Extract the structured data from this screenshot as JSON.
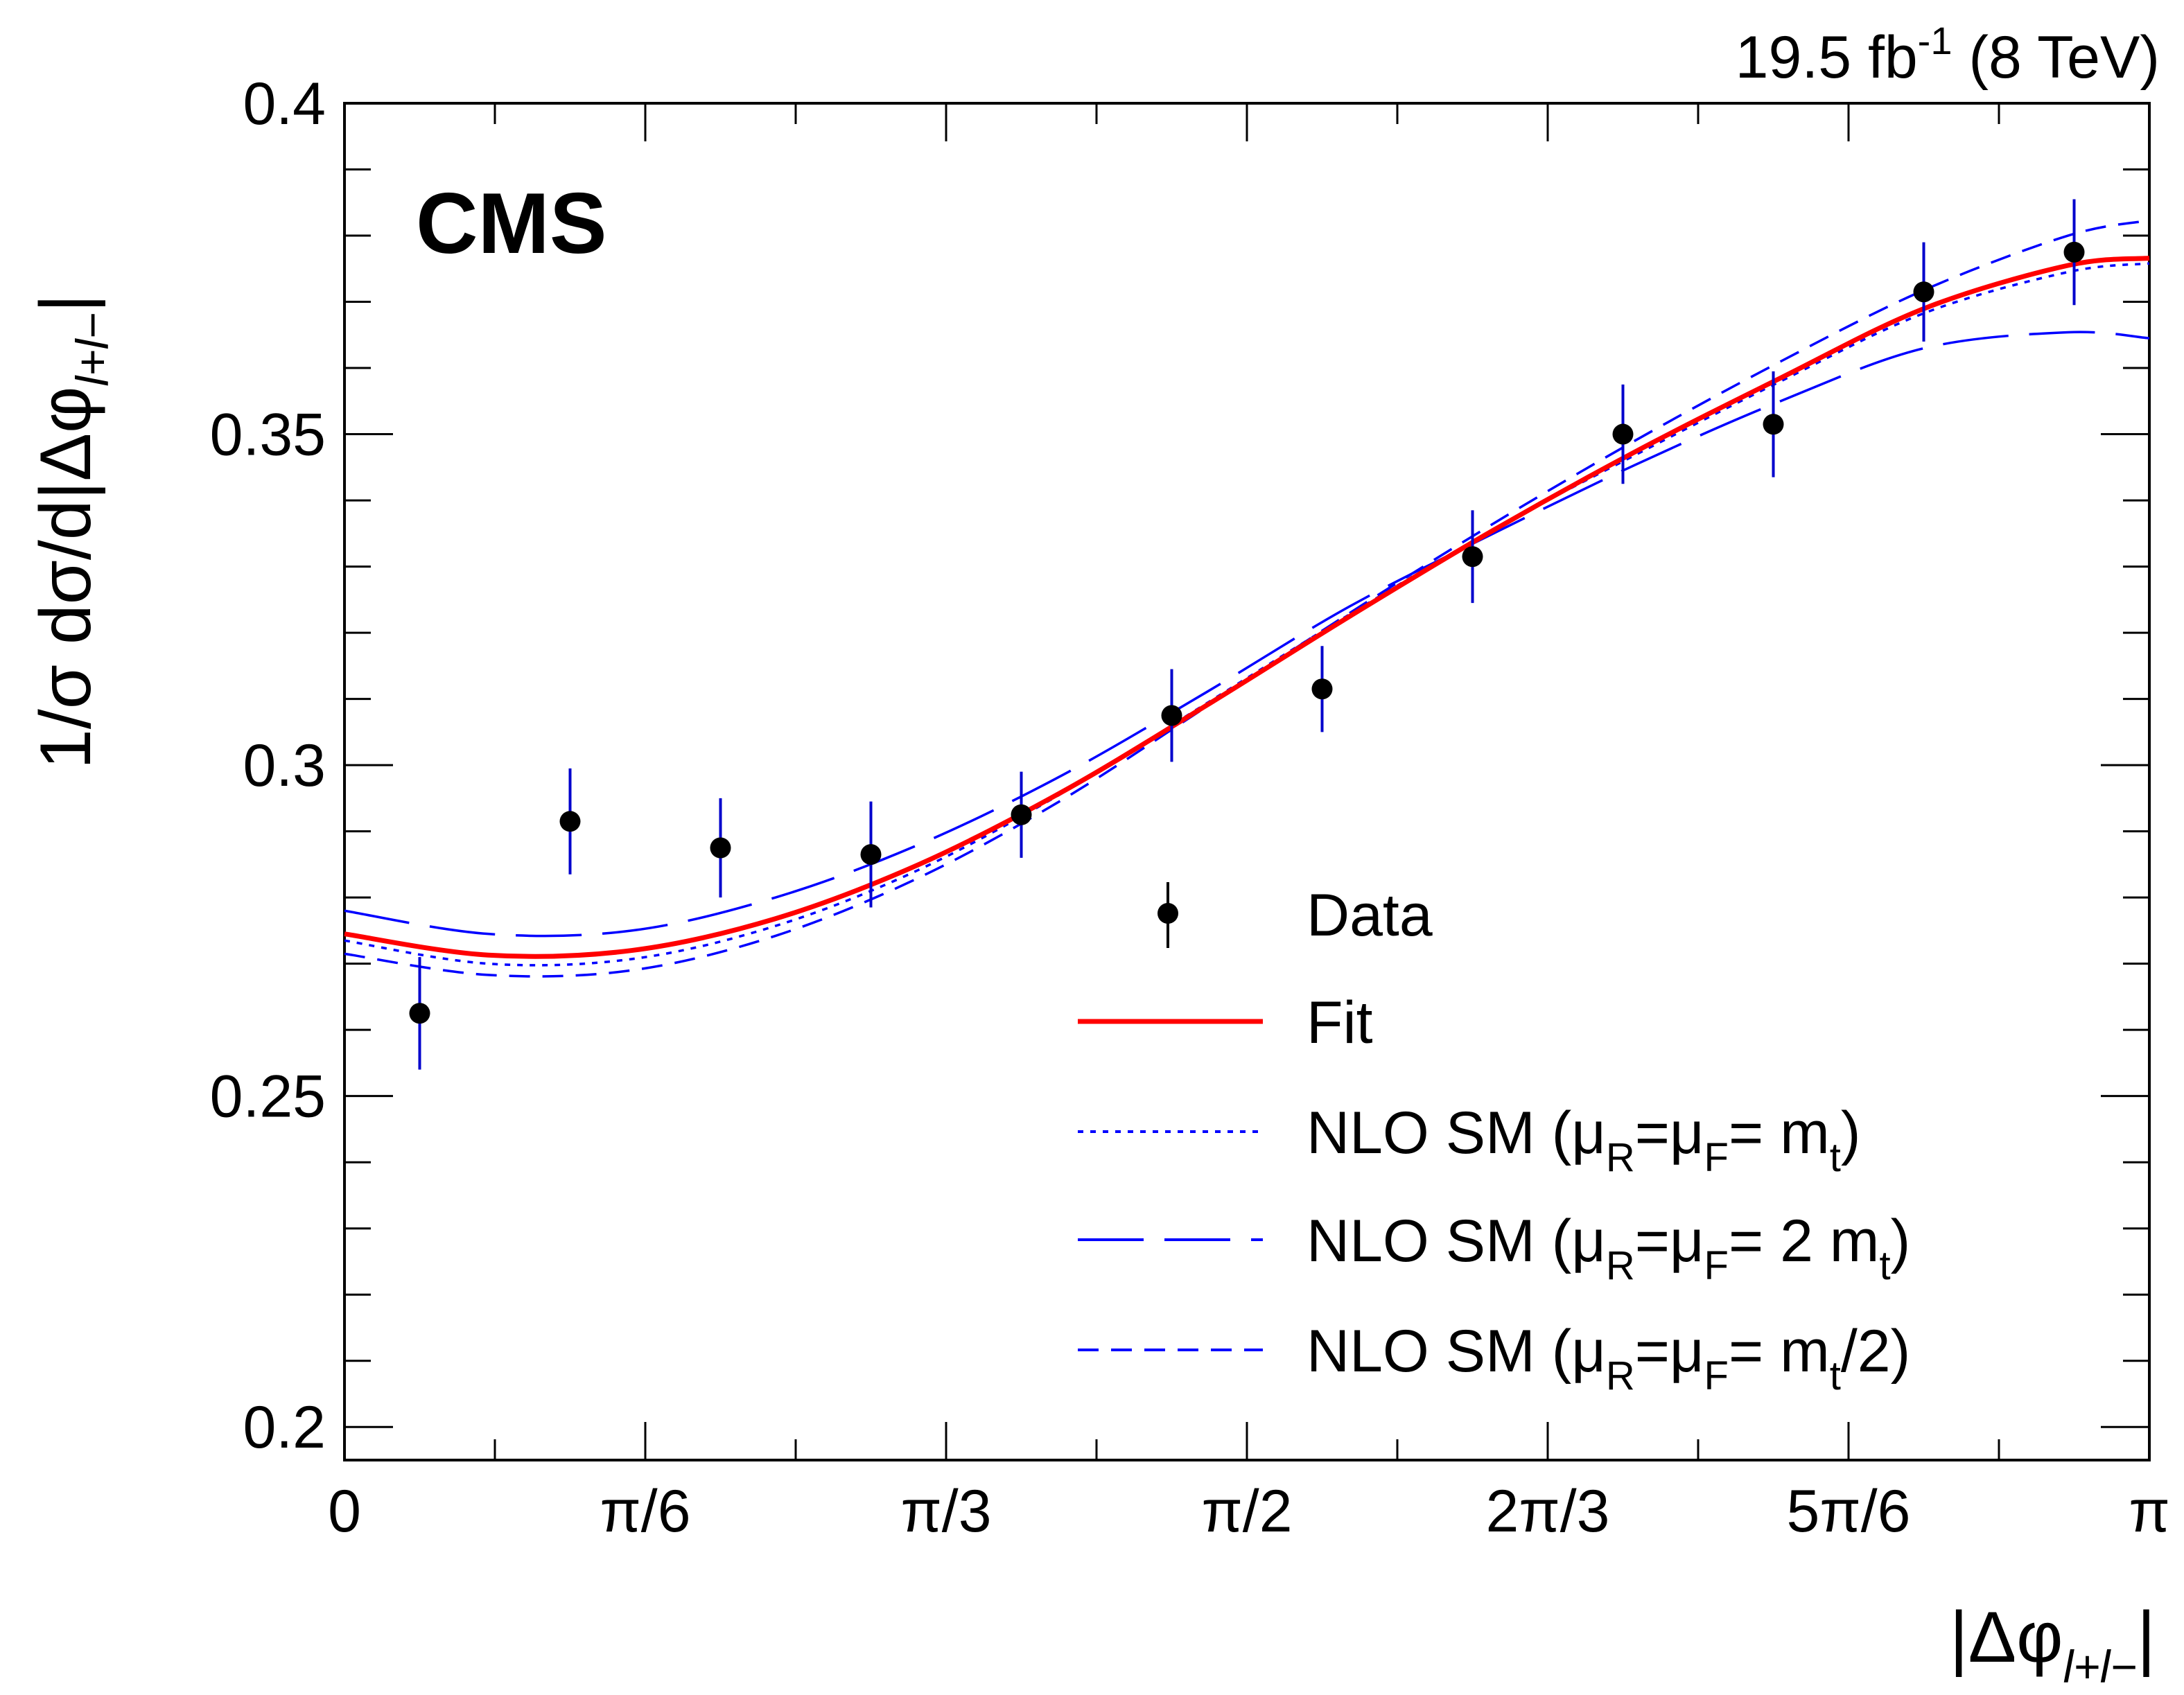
{
  "chart_data": {
    "type": "scatter",
    "title": "",
    "experiment": "CMS",
    "lumi_text": "19.5 fb",
    "lumi_sup": "-1",
    "lumi_suffix": " (8 TeV)",
    "xlabel": "|Δφ",
    "xlabel_sub": "l+l−",
    "xlabel_close": "|",
    "ylabel": "1/σ dσ/d|Δφ",
    "ylabel_sub": "l+l−",
    "ylabel_close": "|",
    "xlim": [
      0,
      3.14159265
    ],
    "ylim": [
      0.195,
      0.4
    ],
    "x_ticks": [
      {
        "value": 0,
        "label": "0"
      },
      {
        "value": 0.5235988,
        "label": "π/6"
      },
      {
        "value": 1.0471976,
        "label": "π/3"
      },
      {
        "value": 1.5707963,
        "label": "π/2"
      },
      {
        "value": 2.0943951,
        "label": "2π/3"
      },
      {
        "value": 2.6179939,
        "label": "5π/6"
      },
      {
        "value": 3.1415927,
        "label": "π"
      }
    ],
    "y_ticks": [
      {
        "value": 0.2,
        "label": "0.2"
      },
      {
        "value": 0.25,
        "label": "0.25"
      },
      {
        "value": 0.3,
        "label": "0.3"
      },
      {
        "value": 0.35,
        "label": "0.35"
      },
      {
        "value": 0.4,
        "label": "0.4"
      }
    ],
    "data_points": {
      "name": "Data",
      "x": [
        0.1309,
        0.3927,
        0.6545,
        0.9163,
        1.1781,
        1.4399,
        1.7017,
        1.9635,
        2.2253,
        2.4871,
        2.7489,
        3.0107
      ],
      "y": [
        0.2625,
        0.2915,
        0.2875,
        0.2865,
        0.2925,
        0.3075,
        0.3115,
        0.3315,
        0.35,
        0.3515,
        0.3715,
        0.3775
      ],
      "err": [
        0.0085,
        0.008,
        0.0075,
        0.008,
        0.0065,
        0.007,
        0.0065,
        0.007,
        0.0075,
        0.008,
        0.0075,
        0.008
      ]
    },
    "series": [
      {
        "name": "Fit",
        "label": "Fit",
        "color": "#ff0000",
        "style": "solid",
        "x": [
          0,
          0.25,
          0.5,
          0.75,
          1.0,
          1.25,
          1.5,
          1.75,
          2.0,
          2.25,
          2.5,
          2.75,
          3.0,
          3.1416
        ],
        "y": [
          0.2745,
          0.2713,
          0.272,
          0.2768,
          0.285,
          0.296,
          0.309,
          0.3225,
          0.3355,
          0.3475,
          0.3585,
          0.369,
          0.3755,
          0.3766
        ]
      },
      {
        "name": "NLO SM (μR=μF=mt)",
        "label_main": "NLO SM (",
        "label_mu": "μ",
        "label_R": "R",
        "label_eq": "=",
        "label_F": "F",
        "label_tail": "= m",
        "label_t": "t",
        "label_end": ")",
        "color": "#0000ff",
        "style": "dotted",
        "x": [
          0,
          0.25,
          0.5,
          0.75,
          1.0,
          1.25,
          1.5,
          1.75,
          2.0,
          2.25,
          2.5,
          2.75,
          3.0,
          3.1416
        ],
        "y": [
          0.2735,
          0.27,
          0.2707,
          0.2757,
          0.2842,
          0.2958,
          0.3093,
          0.3228,
          0.3356,
          0.347,
          0.358,
          0.3683,
          0.3745,
          0.3758
        ]
      },
      {
        "name": "NLO SM (μR=μF=2 mt)",
        "label_main": "NLO SM (",
        "label_mu": "μ",
        "label_R": "R",
        "label_eq": "=",
        "label_F": "F",
        "label_tail": "= 2 m",
        "label_t": "t",
        "label_end": ")",
        "color": "#0000ff",
        "style": "longdash",
        "x": [
          0,
          0.25,
          0.5,
          0.75,
          1.0,
          1.25,
          1.5,
          1.75,
          2.0,
          2.25,
          2.5,
          2.75,
          3.0,
          3.1416
        ],
        "y": [
          0.278,
          0.2745,
          0.275,
          0.28,
          0.288,
          0.2985,
          0.311,
          0.324,
          0.335,
          0.3455,
          0.355,
          0.363,
          0.3654,
          0.3645
        ]
      },
      {
        "name": "NLO SM (μR=μF=mt/2)",
        "label_main": "NLO SM (",
        "label_mu": "μ",
        "label_R": "R",
        "label_eq": "=",
        "label_F": "F",
        "label_tail": "= m",
        "label_t": "t",
        "label_end": "/2)",
        "color": "#0000ff",
        "style": "shortdash",
        "x": [
          0,
          0.25,
          0.5,
          0.75,
          1.0,
          1.25,
          1.5,
          1.75,
          2.0,
          2.25,
          2.5,
          2.75,
          3.0,
          3.1416
        ],
        "y": [
          0.2715,
          0.2683,
          0.269,
          0.2742,
          0.283,
          0.2948,
          0.3088,
          0.323,
          0.3365,
          0.3492,
          0.361,
          0.3718,
          0.38,
          0.3823
        ]
      }
    ],
    "legend": {
      "position": "bottom-right",
      "data_label": "Data",
      "fit_label": "Fit"
    }
  }
}
